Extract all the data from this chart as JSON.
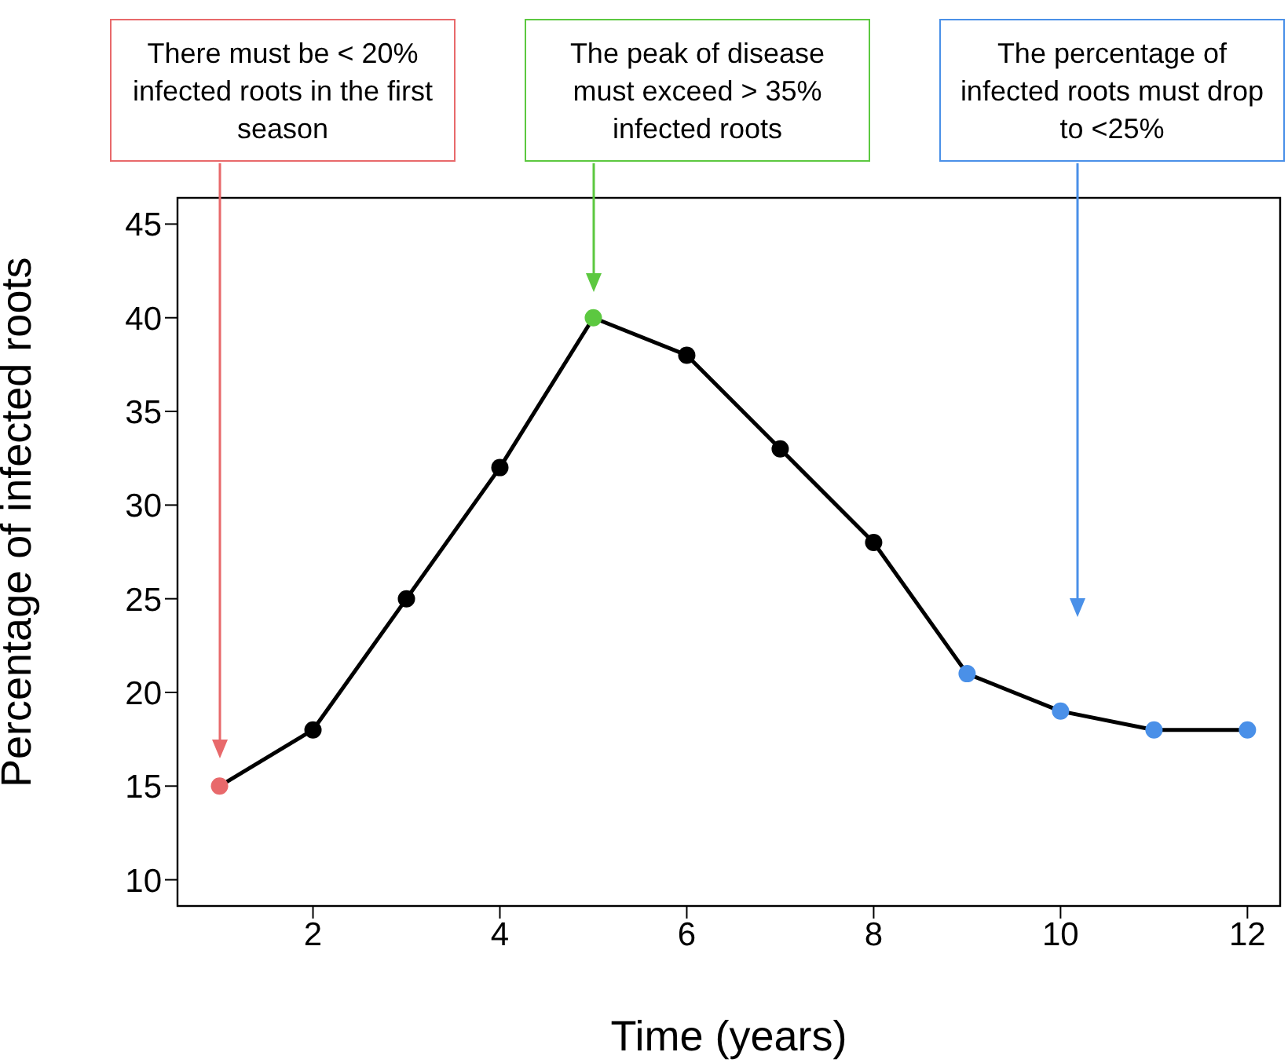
{
  "chart_data": {
    "type": "line",
    "xlabel": "Time (years)",
    "ylabel": "Percentage of infected roots",
    "x": [
      1,
      2,
      3,
      4,
      5,
      6,
      7,
      8,
      9,
      10,
      11,
      12
    ],
    "series": [
      {
        "color": "#000000",
        "colors": [
          "#e8696b",
          "#000000",
          "#000000",
          "#000000",
          "#5cc840",
          "#000000",
          "#000000",
          "#000000",
          "#4a90e8",
          "#4a90e8",
          "#4a90e8",
          "#4a90e8"
        ],
        "values": [
          15,
          18,
          25,
          32,
          40,
          38,
          33,
          28,
          21,
          19,
          18,
          18
        ]
      }
    ],
    "xlim": [
      0.55,
      12.35
    ],
    "xticks": [
      2,
      4,
      6,
      8,
      10,
      12
    ],
    "ylim": [
      8.6,
      46.4
    ],
    "yticks": [
      10,
      15,
      20,
      25,
      30,
      35,
      40,
      45
    ],
    "marker": "circle",
    "line_style": "solid",
    "grid": false,
    "annotations": [
      "There must be < 20% infected roots in the first season",
      "The peak of disease must exceed > 35% infected roots",
      "The percentage of infected roots must drop to <25%"
    ]
  }
}
